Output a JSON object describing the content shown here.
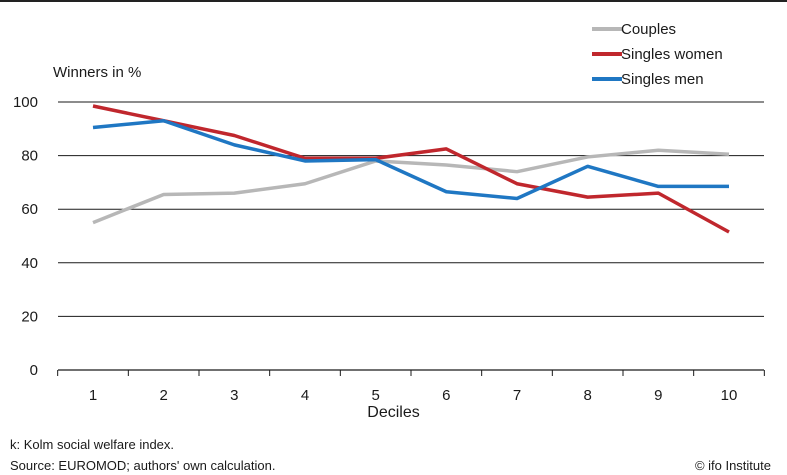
{
  "chart_data": {
    "type": "line",
    "title": "",
    "ylabel": "Winners in %",
    "xlabel": "Deciles",
    "x": [
      1,
      2,
      3,
      4,
      5,
      6,
      7,
      8,
      9,
      10
    ],
    "ylim": [
      0,
      100
    ],
    "yticks": [
      0,
      20,
      40,
      60,
      80,
      100
    ],
    "grid": true,
    "legend_position": "top-right",
    "series": [
      {
        "name": "Couples",
        "color": "#b7b7b7",
        "values": [
          55,
          65.5,
          66,
          69.5,
          78,
          76.5,
          74,
          79.5,
          82,
          80.5
        ]
      },
      {
        "name": "Singles women",
        "color": "#c0272d",
        "values": [
          98.5,
          93,
          87.5,
          79,
          79,
          82.5,
          69.5,
          64.5,
          66,
          51.5
        ]
      },
      {
        "name": "Singles men",
        "color": "#1f77c3",
        "values": [
          90.5,
          93,
          84,
          78,
          78.5,
          66.5,
          64,
          76,
          68.5,
          68.5
        ]
      }
    ]
  },
  "notes": {
    "line1": "k: Kolm social welfare index.",
    "line2": "Source:  EUROMOD; authors' own calculation.",
    "credit": "© ifo Institute"
  }
}
